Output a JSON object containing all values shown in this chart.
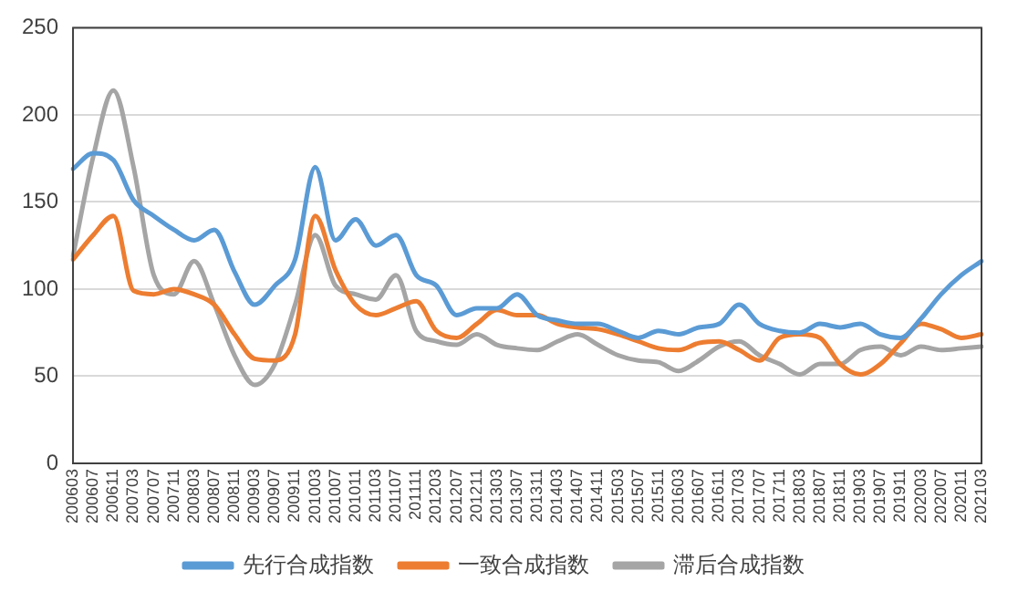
{
  "chart_data": {
    "type": "line",
    "categories": [
      "200603",
      "200607",
      "200611",
      "200703",
      "200707",
      "200711",
      "200803",
      "200807",
      "200811",
      "200903",
      "200907",
      "200911",
      "201003",
      "201007",
      "201011",
      "201103",
      "201107",
      "201111",
      "201203",
      "201207",
      "201211",
      "201303",
      "201307",
      "201311",
      "201403",
      "201407",
      "201411",
      "201503",
      "201507",
      "201511",
      "201603",
      "201607",
      "201611",
      "201703",
      "201707",
      "201711",
      "201803",
      "201807",
      "201811",
      "201903",
      "201907",
      "201911",
      "202003",
      "202007",
      "202011",
      "202103"
    ],
    "series": [
      {
        "name": "先行合成指数",
        "color": "#5b9bd5",
        "values": [
          169,
          178,
          174,
          151,
          142,
          134,
          128,
          134,
          110,
          91,
          102,
          117,
          170,
          128,
          140,
          125,
          131,
          108,
          102,
          85,
          89,
          89,
          97,
          85,
          82,
          80,
          80,
          76,
          72,
          76,
          74,
          78,
          80,
          91,
          80,
          76,
          75,
          80,
          78,
          80,
          74,
          72,
          83,
          97,
          108,
          116
        ]
      },
      {
        "name": "一致合成指数",
        "color": "#ed7d31",
        "values": [
          117,
          131,
          142,
          99,
          97,
          100,
          97,
          91,
          74,
          60,
          59,
          74,
          142,
          111,
          91,
          85,
          89,
          93,
          76,
          72,
          80,
          88,
          85,
          85,
          80,
          78,
          77,
          74,
          70,
          66,
          65,
          69,
          70,
          65,
          59,
          72,
          74,
          72,
          57,
          51,
          57,
          69,
          80,
          77,
          72,
          74
        ]
      },
      {
        "name": "滞后合成指数",
        "color": "#a5a5a5",
        "values": [
          119,
          176,
          214,
          170,
          108,
          97,
          116,
          91,
          62,
          45,
          57,
          91,
          131,
          102,
          97,
          94,
          108,
          76,
          70,
          68,
          74,
          68,
          66,
          65,
          70,
          74,
          68,
          62,
          59,
          58,
          53,
          59,
          67,
          70,
          62,
          57,
          51,
          57,
          57,
          65,
          67,
          62,
          67,
          65,
          66,
          67
        ]
      }
    ],
    "ylim": [
      0,
      250
    ],
    "yticks": [
      0,
      50,
      100,
      150,
      200,
      250
    ],
    "grid": "y",
    "legend": "bottom",
    "marker": "none",
    "line_style": "solid"
  }
}
